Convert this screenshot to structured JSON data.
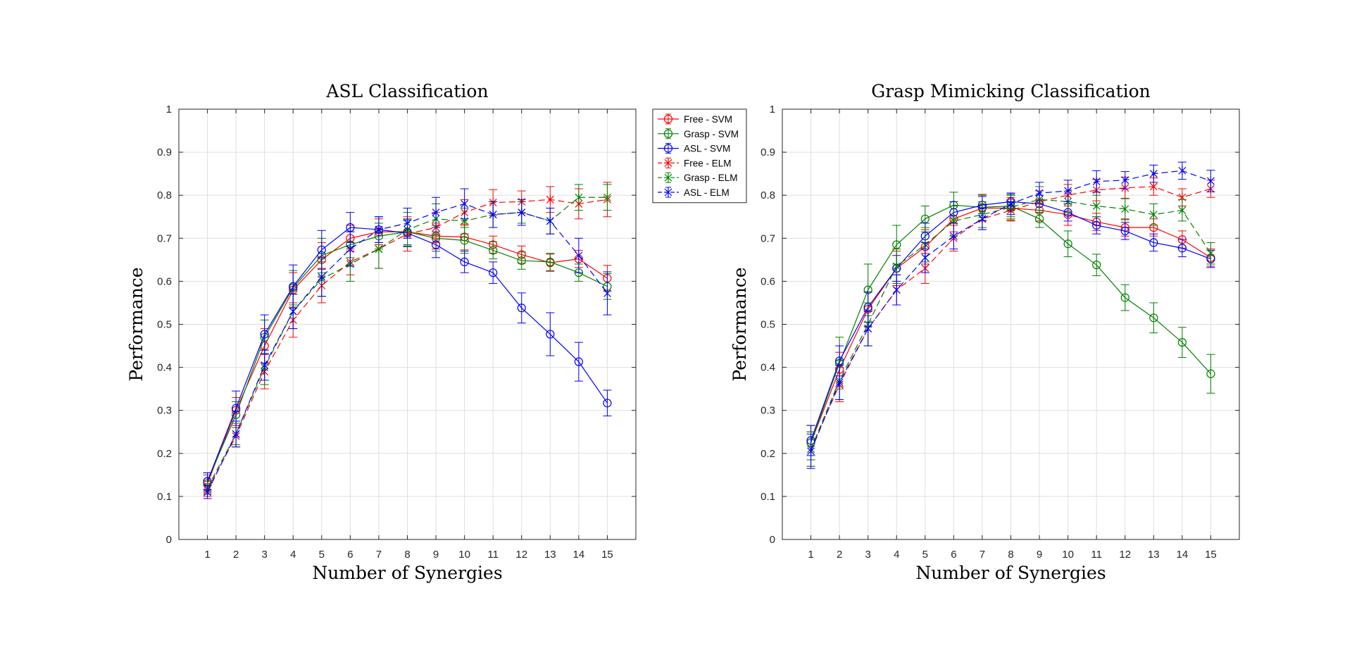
{
  "colors": {
    "Free": "#ff0000",
    "Grasp": "#008000",
    "ASL": "#0000ff"
  },
  "legend": {
    "entries": [
      {
        "label": "Free - SVM",
        "color": "#ff0000",
        "dash": false,
        "marker": "circle"
      },
      {
        "label": "Grasp - SVM",
        "color": "#008000",
        "dash": false,
        "marker": "circle"
      },
      {
        "label": "ASL - SVM",
        "color": "#0000ff",
        "dash": false,
        "marker": "circle"
      },
      {
        "label": "Free - ELM",
        "color": "#ff0000",
        "dash": true,
        "marker": "star"
      },
      {
        "label": "Grasp - ELM",
        "color": "#008000",
        "dash": true,
        "marker": "star"
      },
      {
        "label": "ASL - ELM",
        "color": "#0000ff",
        "dash": true,
        "marker": "star"
      }
    ]
  },
  "chart_data": [
    {
      "type": "line",
      "title": "ASL Classification",
      "xlabel": "Number of Synergies",
      "ylabel": "Performance",
      "x": [
        1,
        2,
        3,
        4,
        5,
        6,
        7,
        8,
        9,
        10,
        11,
        12,
        13,
        14,
        15
      ],
      "xlim": [
        0,
        16
      ],
      "ylim": [
        0,
        1
      ],
      "yticks": [
        0,
        0.1,
        0.2,
        0.3,
        0.4,
        0.5,
        0.6,
        0.7,
        0.8,
        0.9,
        1
      ],
      "grid": true,
      "series": [
        {
          "name": "Free - SVM",
          "color": "#ff0000",
          "dash": false,
          "marker": "circle",
          "values": [
            0.13,
            0.3,
            0.45,
            0.58,
            0.65,
            0.7,
            0.715,
            0.715,
            0.705,
            0.703,
            0.685,
            0.662,
            0.643,
            0.652,
            0.607
          ],
          "errors": [
            0.02,
            0.03,
            0.04,
            0.04,
            0.04,
            0.03,
            0.03,
            0.03,
            0.03,
            0.03,
            0.02,
            0.02,
            0.02,
            0.02,
            0.03
          ]
        },
        {
          "name": "Grasp - SVM",
          "color": "#008000",
          "dash": false,
          "marker": "circle",
          "values": [
            0.135,
            0.29,
            0.47,
            0.585,
            0.66,
            0.685,
            0.705,
            0.715,
            0.7,
            0.695,
            0.672,
            0.648,
            0.645,
            0.62,
            0.588
          ],
          "errors": [
            0.02,
            0.03,
            0.04,
            0.04,
            0.04,
            0.03,
            0.03,
            0.03,
            0.03,
            0.03,
            0.02,
            0.02,
            0.02,
            0.02,
            0.03
          ]
        },
        {
          "name": "ASL - SVM",
          "color": "#0000ff",
          "dash": false,
          "marker": "circle",
          "values": [
            0.135,
            0.305,
            0.477,
            0.588,
            0.673,
            0.725,
            0.72,
            0.712,
            0.685,
            0.645,
            0.62,
            0.538,
            0.477,
            0.413,
            0.317
          ],
          "errors": [
            0.02,
            0.04,
            0.045,
            0.05,
            0.045,
            0.035,
            0.03,
            0.03,
            0.03,
            0.025,
            0.025,
            0.035,
            0.05,
            0.045,
            0.03
          ]
        },
        {
          "name": "Free - ELM",
          "color": "#ff0000",
          "dash": true,
          "marker": "star",
          "values": [
            0.115,
            0.24,
            0.39,
            0.51,
            0.59,
            0.645,
            0.675,
            0.71,
            0.725,
            0.76,
            0.783,
            0.785,
            0.79,
            0.78,
            0.79
          ],
          "errors": [
            0.015,
            0.025,
            0.04,
            0.04,
            0.04,
            0.03,
            0.045,
            0.04,
            0.035,
            0.03,
            0.03,
            0.025,
            0.03,
            0.035,
            0.04
          ]
        },
        {
          "name": "Grasp - ELM",
          "color": "#008000",
          "dash": true,
          "marker": "star",
          "values": [
            0.12,
            0.245,
            0.4,
            0.53,
            0.605,
            0.64,
            0.675,
            0.72,
            0.745,
            0.74,
            0.755,
            0.76,
            0.74,
            0.795,
            0.795
          ],
          "errors": [
            0.015,
            0.025,
            0.04,
            0.04,
            0.04,
            0.04,
            0.045,
            0.04,
            0.035,
            0.03,
            0.03,
            0.025,
            0.03,
            0.03,
            0.03
          ]
        },
        {
          "name": "ASL - ELM",
          "color": "#0000ff",
          "dash": true,
          "marker": "star",
          "values": [
            0.11,
            0.245,
            0.405,
            0.53,
            0.61,
            0.675,
            0.72,
            0.735,
            0.76,
            0.78,
            0.755,
            0.76,
            0.74,
            0.66,
            0.572
          ],
          "errors": [
            0.015,
            0.03,
            0.035,
            0.04,
            0.045,
            0.04,
            0.03,
            0.035,
            0.035,
            0.035,
            0.03,
            0.03,
            0.03,
            0.04,
            0.05
          ]
        }
      ]
    },
    {
      "type": "line",
      "title": "Grasp Mimicking Classification",
      "xlabel": "Number of Synergies",
      "ylabel": "Performance",
      "x": [
        1,
        2,
        3,
        4,
        5,
        6,
        7,
        8,
        9,
        10,
        11,
        12,
        13,
        14,
        15
      ],
      "xlim": [
        0,
        16
      ],
      "ylim": [
        0,
        1
      ],
      "yticks": [
        0,
        0.1,
        0.2,
        0.3,
        0.4,
        0.5,
        0.6,
        0.7,
        0.8,
        0.9,
        1
      ],
      "grid": true,
      "series": [
        {
          "name": "Free - SVM",
          "color": "#ff0000",
          "dash": false,
          "marker": "circle",
          "values": [
            0.225,
            0.395,
            0.535,
            0.63,
            0.68,
            0.745,
            0.77,
            0.77,
            0.765,
            0.755,
            0.738,
            0.725,
            0.725,
            0.697,
            0.655
          ],
          "errors": [
            0.04,
            0.04,
            0.04,
            0.04,
            0.04,
            0.03,
            0.03,
            0.025,
            0.025,
            0.025,
            0.02,
            0.02,
            0.02,
            0.02,
            0.02
          ]
        },
        {
          "name": "Grasp - SVM",
          "color": "#008000",
          "dash": false,
          "marker": "circle",
          "values": [
            0.225,
            0.41,
            0.58,
            0.685,
            0.745,
            0.777,
            0.772,
            0.775,
            0.745,
            0.687,
            0.638,
            0.562,
            0.515,
            0.458,
            0.385
          ],
          "errors": [
            0.04,
            0.06,
            0.06,
            0.045,
            0.03,
            0.03,
            0.03,
            0.025,
            0.02,
            0.03,
            0.025,
            0.03,
            0.035,
            0.035,
            0.045
          ]
        },
        {
          "name": "ASL - SVM",
          "color": "#0000ff",
          "dash": false,
          "marker": "circle",
          "values": [
            0.23,
            0.415,
            0.54,
            0.63,
            0.705,
            0.76,
            0.777,
            0.785,
            0.78,
            0.76,
            0.73,
            0.717,
            0.69,
            0.677,
            0.652
          ],
          "errors": [
            0.035,
            0.035,
            0.035,
            0.03,
            0.03,
            0.025,
            0.02,
            0.02,
            0.02,
            0.02,
            0.02,
            0.02,
            0.02,
            0.02,
            0.02
          ]
        },
        {
          "name": "Free - ELM",
          "color": "#ff0000",
          "dash": true,
          "marker": "star",
          "values": [
            0.21,
            0.36,
            0.49,
            0.58,
            0.63,
            0.7,
            0.745,
            0.765,
            0.785,
            0.8,
            0.812,
            0.817,
            0.82,
            0.795,
            0.815
          ],
          "errors": [
            0.04,
            0.04,
            0.04,
            0.035,
            0.035,
            0.03,
            0.025,
            0.025,
            0.025,
            0.025,
            0.025,
            0.025,
            0.02,
            0.02,
            0.02
          ]
        },
        {
          "name": "Grasp - ELM",
          "color": "#008000",
          "dash": true,
          "marker": "star",
          "values": [
            0.21,
            0.37,
            0.5,
            0.635,
            0.685,
            0.74,
            0.755,
            0.772,
            0.79,
            0.785,
            0.775,
            0.768,
            0.755,
            0.765,
            0.665
          ],
          "errors": [
            0.04,
            0.045,
            0.05,
            0.04,
            0.04,
            0.035,
            0.03,
            0.03,
            0.03,
            0.025,
            0.025,
            0.025,
            0.025,
            0.025,
            0.025
          ]
        },
        {
          "name": "ASL - ELM",
          "color": "#0000ff",
          "dash": true,
          "marker": "star",
          "values": [
            0.205,
            0.365,
            0.49,
            0.58,
            0.655,
            0.705,
            0.745,
            0.78,
            0.805,
            0.81,
            0.832,
            0.835,
            0.85,
            0.857,
            0.833
          ],
          "errors": [
            0.04,
            0.04,
            0.04,
            0.035,
            0.035,
            0.03,
            0.025,
            0.025,
            0.025,
            0.025,
            0.025,
            0.02,
            0.02,
            0.02,
            0.025
          ]
        }
      ]
    }
  ]
}
